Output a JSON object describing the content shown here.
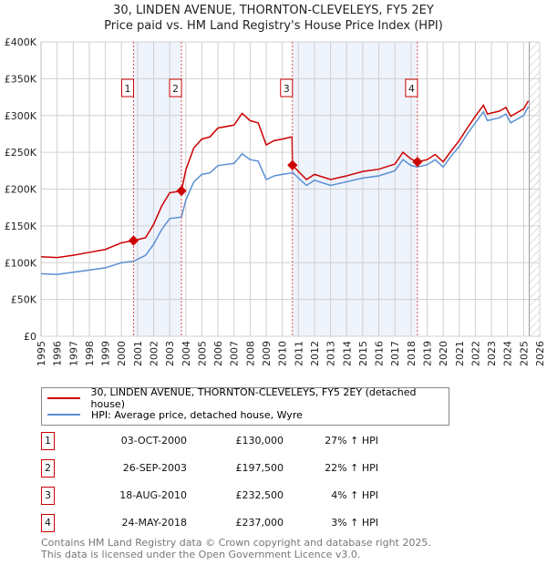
{
  "chart_data": {
    "type": "line",
    "title": "30, LINDEN AVENUE, THORNTON-CLEVELEYS, FY5 2EY",
    "subtitle": "Price paid vs. HM Land Registry's House Price Index (HPI)",
    "xlim": [
      1995,
      2026
    ],
    "ylim": [
      0,
      400000
    ],
    "x_ticks": [
      "1995",
      "1996",
      "1997",
      "1998",
      "1999",
      "2000",
      "2001",
      "2002",
      "2003",
      "2004",
      "2005",
      "2006",
      "2007",
      "2008",
      "2009",
      "2010",
      "2011",
      "2012",
      "2013",
      "2014",
      "2015",
      "2016",
      "2017",
      "2018",
      "2019",
      "2020",
      "2021",
      "2022",
      "2023",
      "2024",
      "2025",
      "2026"
    ],
    "y_ticks": [
      {
        "v": 0,
        "label": "£0"
      },
      {
        "v": 50000,
        "label": "£50K"
      },
      {
        "v": 100000,
        "label": "£100K"
      },
      {
        "v": 150000,
        "label": "£150K"
      },
      {
        "v": 200000,
        "label": "£200K"
      },
      {
        "v": 250000,
        "label": "£250K"
      },
      {
        "v": 300000,
        "label": "£300K"
      },
      {
        "v": 350000,
        "label": "£350K"
      },
      {
        "v": 400000,
        "label": "£400K"
      }
    ],
    "grid": true,
    "x": [
      1995,
      1996,
      1997,
      1998,
      1999,
      2000,
      2000.75,
      2001.5,
      2002,
      2002.5,
      2003,
      2003.73,
      2004,
      2004.5,
      2005,
      2005.5,
      2006,
      2007,
      2007.5,
      2008,
      2008.5,
      2009,
      2009.5,
      2010,
      2010.6,
      2010.63,
      2011,
      2011.5,
      2012,
      2013,
      2014,
      2015,
      2016,
      2017,
      2017.5,
      2018,
      2018.4,
      2019,
      2019.5,
      2020,
      2020.5,
      2021,
      2021.5,
      2022,
      2022.5,
      2022.75,
      2023.5,
      2023.9,
      2024.2,
      2025,
      2025.3
    ],
    "series": [
      {
        "name": "30, LINDEN AVENUE, THORNTON-CLEVELEYS, FY5 2EY (detached house)",
        "color": "#cc0000",
        "values": [
          108,
          107,
          110,
          114,
          118,
          127,
          130,
          134,
          152,
          177,
          195,
          197.5,
          226,
          256,
          268,
          271,
          283,
          287,
          303,
          293,
          290,
          260,
          266,
          268,
          271,
          232.5,
          224,
          213,
          220,
          213,
          218,
          224,
          227,
          234,
          250,
          241,
          237,
          240,
          247,
          237,
          252,
          266,
          283,
          299,
          314,
          302,
          306,
          311,
          299,
          309,
          320
        ]
      },
      {
        "name": "HPI: Average price, detached house, Wyre",
        "color": "#5b8fd4",
        "values": [
          85,
          84,
          87,
          90,
          93,
          100,
          102,
          110,
          125,
          145,
          160,
          162,
          185,
          210,
          220,
          222,
          232,
          235,
          248,
          240,
          238,
          213,
          218,
          220,
          222,
          223,
          215,
          205,
          212,
          205,
          210,
          215,
          218,
          225,
          240,
          232,
          230,
          233,
          240,
          230,
          245,
          258,
          275,
          290,
          305,
          293,
          297,
          302,
          290,
          300,
          312
        ]
      }
    ],
    "value_unit": "£K",
    "sales": [
      {
        "n": "1",
        "x": 2000.75,
        "price": 130
      },
      {
        "n": "2",
        "x": 2003.73,
        "price": 197.5
      },
      {
        "n": "3",
        "x": 2010.63,
        "price": 232.5
      },
      {
        "n": "4",
        "x": 2018.4,
        "price": 237
      }
    ],
    "shaded": [
      [
        2000.75,
        2003.73
      ],
      [
        2010.63,
        2018.4
      ]
    ],
    "forecast_from": 2025.35,
    "legend_position": "below"
  },
  "table": [
    {
      "n": "1",
      "date": "03-OCT-2000",
      "price": "£130,000",
      "hpi": "27% ↑ HPI"
    },
    {
      "n": "2",
      "date": "26-SEP-2003",
      "price": "£197,500",
      "hpi": "22% ↑ HPI"
    },
    {
      "n": "3",
      "date": "18-AUG-2010",
      "price": "£232,500",
      "hpi": "4% ↑ HPI"
    },
    {
      "n": "4",
      "date": "24-MAY-2018",
      "price": "£237,000",
      "hpi": "3% ↑ HPI"
    }
  ],
  "footer": [
    "Contains HM Land Registry data © Crown copyright and database right 2025.",
    "This data is licensed under the Open Government Licence v3.0."
  ]
}
